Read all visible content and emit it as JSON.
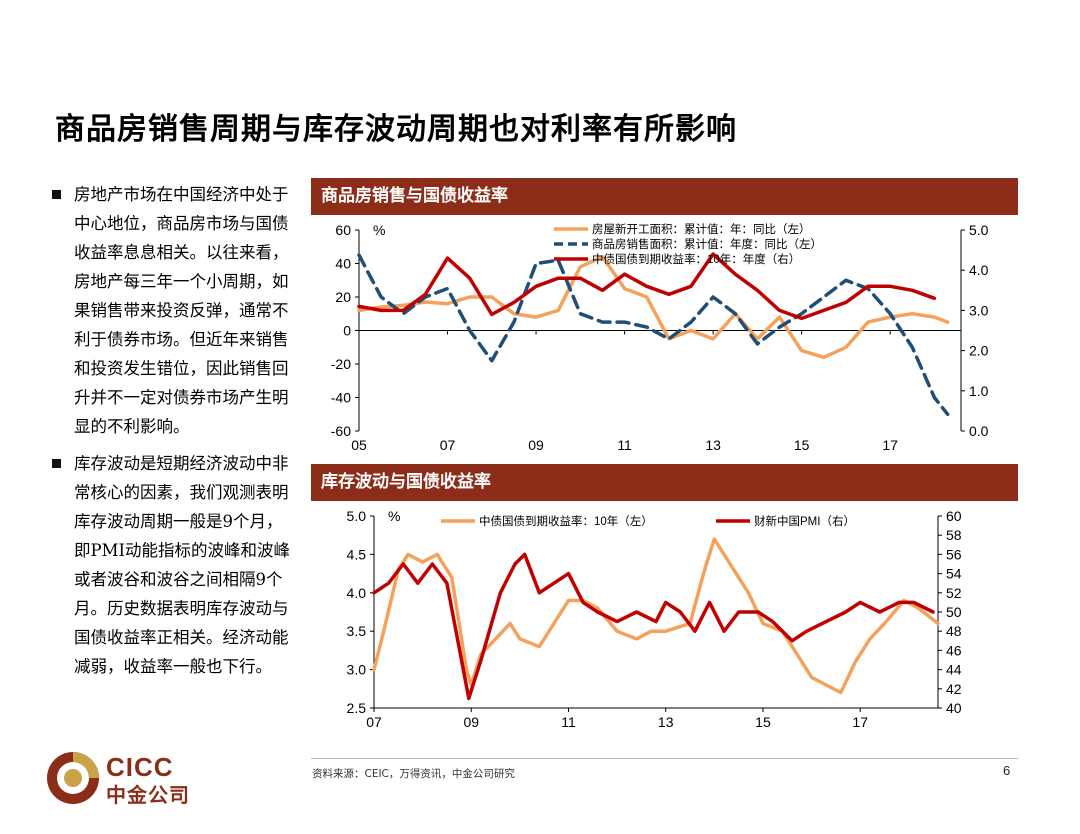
{
  "title": "商品房销售周期与库存波动周期也对利率有所影响",
  "bullets": [
    "房地产市场在中国经济中处于中心地位，商品房市场与国债收益率息息相关。以往来看，房地产每三年一个小周期，如果销售带来投资反弹，通常不利于债券市场。但近年来销售和投资发生错位，因此销售回升并不一定对债券市场产生明显的不利影响。",
    "库存波动是短期经济波动中非常核心的因素，我们观测表明库存波动周期一般是9个月，即PMI动能指标的波峰和波峰或者波谷和波谷之间相隔9个月。历史数据表明库存波动与国债收益率正相关。经济动能减弱，收益率一般也下行。"
  ],
  "panel1_header": "商品房销售与国债收益率",
  "panel2_header": "库存波动与国债收益率",
  "source": "资料来源：CEIC，万得资讯，中金公司研究",
  "page_number": "6",
  "logo": {
    "en": "CICC",
    "cn": "中金公司"
  },
  "chart_data": [
    {
      "type": "line",
      "unit_label": "%",
      "x_ticks": [
        "05",
        "07",
        "09",
        "11",
        "13",
        "15",
        "17"
      ],
      "x_range": [
        2005.0,
        2018.6
      ],
      "ylim_left": [
        -60,
        60
      ],
      "yticks_left": [
        "60",
        "40",
        "20",
        "0",
        "-20",
        "-40",
        "-60"
      ],
      "ylim_right": [
        0,
        5
      ],
      "yticks_right": [
        "5.0",
        "4.0",
        "3.0",
        "2.0",
        "1.0",
        "0.0"
      ],
      "series": [
        {
          "name": "房屋新开工面积：累计值：年：同比（左）",
          "axis": "left",
          "color": "#f4a25b",
          "dash": "solid",
          "points": [
            [
              2005.0,
              12
            ],
            [
              2005.5,
              14
            ],
            [
              2006.0,
              15
            ],
            [
              2006.5,
              17
            ],
            [
              2007.0,
              16
            ],
            [
              2007.5,
              20
            ],
            [
              2008.0,
              20
            ],
            [
              2008.5,
              10
            ],
            [
              2009.0,
              8
            ],
            [
              2009.5,
              12
            ],
            [
              2010.0,
              38
            ],
            [
              2010.5,
              44
            ],
            [
              2011.0,
              25
            ],
            [
              2011.5,
              20
            ],
            [
              2012.0,
              -5
            ],
            [
              2012.5,
              0
            ],
            [
              2013.0,
              -5
            ],
            [
              2013.5,
              10
            ],
            [
              2014.0,
              -5
            ],
            [
              2014.5,
              8
            ],
            [
              2015.0,
              -12
            ],
            [
              2015.5,
              -16
            ],
            [
              2016.0,
              -10
            ],
            [
              2016.5,
              5
            ],
            [
              2017.0,
              8
            ],
            [
              2017.5,
              10
            ],
            [
              2018.0,
              8
            ],
            [
              2018.3,
              5
            ]
          ]
        },
        {
          "name": "商品房销售面积：累计值：年度：同比（左）",
          "axis": "left",
          "color": "#1f4e79",
          "dash": "dashed",
          "points": [
            [
              2005.0,
              45
            ],
            [
              2005.5,
              20
            ],
            [
              2006.0,
              10
            ],
            [
              2006.5,
              20
            ],
            [
              2007.0,
              25
            ],
            [
              2007.5,
              0
            ],
            [
              2008.0,
              -18
            ],
            [
              2008.5,
              5
            ],
            [
              2009.0,
              40
            ],
            [
              2009.5,
              42
            ],
            [
              2010.0,
              10
            ],
            [
              2010.5,
              5
            ],
            [
              2011.0,
              5
            ],
            [
              2011.5,
              2
            ],
            [
              2012.0,
              -5
            ],
            [
              2012.5,
              5
            ],
            [
              2013.0,
              20
            ],
            [
              2013.5,
              10
            ],
            [
              2014.0,
              -8
            ],
            [
              2014.5,
              2
            ],
            [
              2015.0,
              10
            ],
            [
              2015.5,
              20
            ],
            [
              2016.0,
              30
            ],
            [
              2016.5,
              25
            ],
            [
              2017.0,
              10
            ],
            [
              2017.5,
              -10
            ],
            [
              2018.0,
              -40
            ],
            [
              2018.3,
              -50
            ]
          ]
        },
        {
          "name": "中债国债到期收益率：10年：年度（右）",
          "axis": "right",
          "color": "#c00000",
          "dash": "solid",
          "points": [
            [
              2005.0,
              3.1
            ],
            [
              2005.5,
              3.0
            ],
            [
              2006.0,
              3.0
            ],
            [
              2006.5,
              3.4
            ],
            [
              2007.0,
              4.3
            ],
            [
              2007.5,
              3.8
            ],
            [
              2008.0,
              2.9
            ],
            [
              2008.5,
              3.2
            ],
            [
              2009.0,
              3.6
            ],
            [
              2009.5,
              3.8
            ],
            [
              2010.0,
              3.8
            ],
            [
              2010.5,
              3.5
            ],
            [
              2011.0,
              3.9
            ],
            [
              2011.5,
              3.6
            ],
            [
              2012.0,
              3.4
            ],
            [
              2012.5,
              3.6
            ],
            [
              2013.0,
              4.4
            ],
            [
              2013.5,
              3.9
            ],
            [
              2014.0,
              3.5
            ],
            [
              2014.5,
              3.0
            ],
            [
              2015.0,
              2.8
            ],
            [
              2015.5,
              3.0
            ],
            [
              2016.0,
              3.2
            ],
            [
              2016.5,
              3.6
            ],
            [
              2017.0,
              3.6
            ],
            [
              2017.5,
              3.5
            ],
            [
              2018.0,
              3.3
            ]
          ]
        }
      ]
    },
    {
      "type": "line",
      "unit_label": "%",
      "x_ticks": [
        "07",
        "09",
        "11",
        "13",
        "15",
        "17"
      ],
      "x_range": [
        2007.0,
        2018.6
      ],
      "ylim_left": [
        2.5,
        5.0
      ],
      "yticks_left": [
        "5.0",
        "4.5",
        "4.0",
        "3.5",
        "3.0",
        "2.5"
      ],
      "ylim_right": [
        40,
        60
      ],
      "yticks_right": [
        "60",
        "58",
        "56",
        "54",
        "52",
        "50",
        "48",
        "46",
        "44",
        "42",
        "40"
      ],
      "series": [
        {
          "name": "中债国债到期收益率：10年（左）",
          "axis": "left",
          "color": "#f4a25b",
          "dash": "solid",
          "points": [
            [
              2007.0,
              3.0
            ],
            [
              2007.2,
              3.5
            ],
            [
              2007.5,
              4.3
            ],
            [
              2007.7,
              4.5
            ],
            [
              2008.0,
              4.4
            ],
            [
              2008.3,
              4.5
            ],
            [
              2008.6,
              4.2
            ],
            [
              2008.9,
              3.0
            ],
            [
              2009.0,
              2.8
            ],
            [
              2009.2,
              3.2
            ],
            [
              2009.5,
              3.4
            ],
            [
              2009.8,
              3.6
            ],
            [
              2010.0,
              3.4
            ],
            [
              2010.4,
              3.3
            ],
            [
              2010.7,
              3.6
            ],
            [
              2011.0,
              3.9
            ],
            [
              2011.3,
              3.9
            ],
            [
              2011.6,
              3.8
            ],
            [
              2012.0,
              3.5
            ],
            [
              2012.4,
              3.4
            ],
            [
              2012.7,
              3.5
            ],
            [
              2013.0,
              3.5
            ],
            [
              2013.5,
              3.6
            ],
            [
              2013.8,
              4.3
            ],
            [
              2014.0,
              4.7
            ],
            [
              2014.3,
              4.4
            ],
            [
              2014.7,
              4.0
            ],
            [
              2015.0,
              3.6
            ],
            [
              2015.4,
              3.5
            ],
            [
              2015.8,
              3.1
            ],
            [
              2016.0,
              2.9
            ],
            [
              2016.3,
              2.8
            ],
            [
              2016.6,
              2.7
            ],
            [
              2016.9,
              3.1
            ],
            [
              2017.2,
              3.4
            ],
            [
              2017.5,
              3.6
            ],
            [
              2017.9,
              3.9
            ],
            [
              2018.2,
              3.8
            ],
            [
              2018.6,
              3.6
            ]
          ]
        },
        {
          "name": "财新中国PMI（右）",
          "axis": "right",
          "color": "#c00000",
          "dash": "solid",
          "points": [
            [
              2007.0,
              52
            ],
            [
              2007.3,
              53
            ],
            [
              2007.6,
              55
            ],
            [
              2007.9,
              53
            ],
            [
              2008.2,
              55
            ],
            [
              2008.5,
              53
            ],
            [
              2008.8,
              45
            ],
            [
              2008.95,
              41
            ],
            [
              2009.2,
              45
            ],
            [
              2009.6,
              52
            ],
            [
              2009.9,
              55
            ],
            [
              2010.1,
              56
            ],
            [
              2010.4,
              52
            ],
            [
              2010.7,
              53
            ],
            [
              2011.0,
              54
            ],
            [
              2011.3,
              51
            ],
            [
              2011.6,
              50
            ],
            [
              2012.0,
              49
            ],
            [
              2012.4,
              50
            ],
            [
              2012.8,
              49
            ],
            [
              2013.0,
              51
            ],
            [
              2013.3,
              50
            ],
            [
              2013.6,
              48
            ],
            [
              2013.9,
              51
            ],
            [
              2014.2,
              48
            ],
            [
              2014.5,
              50
            ],
            [
              2014.9,
              50
            ],
            [
              2015.2,
              49
            ],
            [
              2015.6,
              47
            ],
            [
              2015.9,
              48
            ],
            [
              2016.3,
              49
            ],
            [
              2016.7,
              50
            ],
            [
              2017.0,
              51
            ],
            [
              2017.4,
              50
            ],
            [
              2017.8,
              51
            ],
            [
              2018.1,
              51
            ],
            [
              2018.5,
              50
            ]
          ]
        }
      ]
    }
  ]
}
